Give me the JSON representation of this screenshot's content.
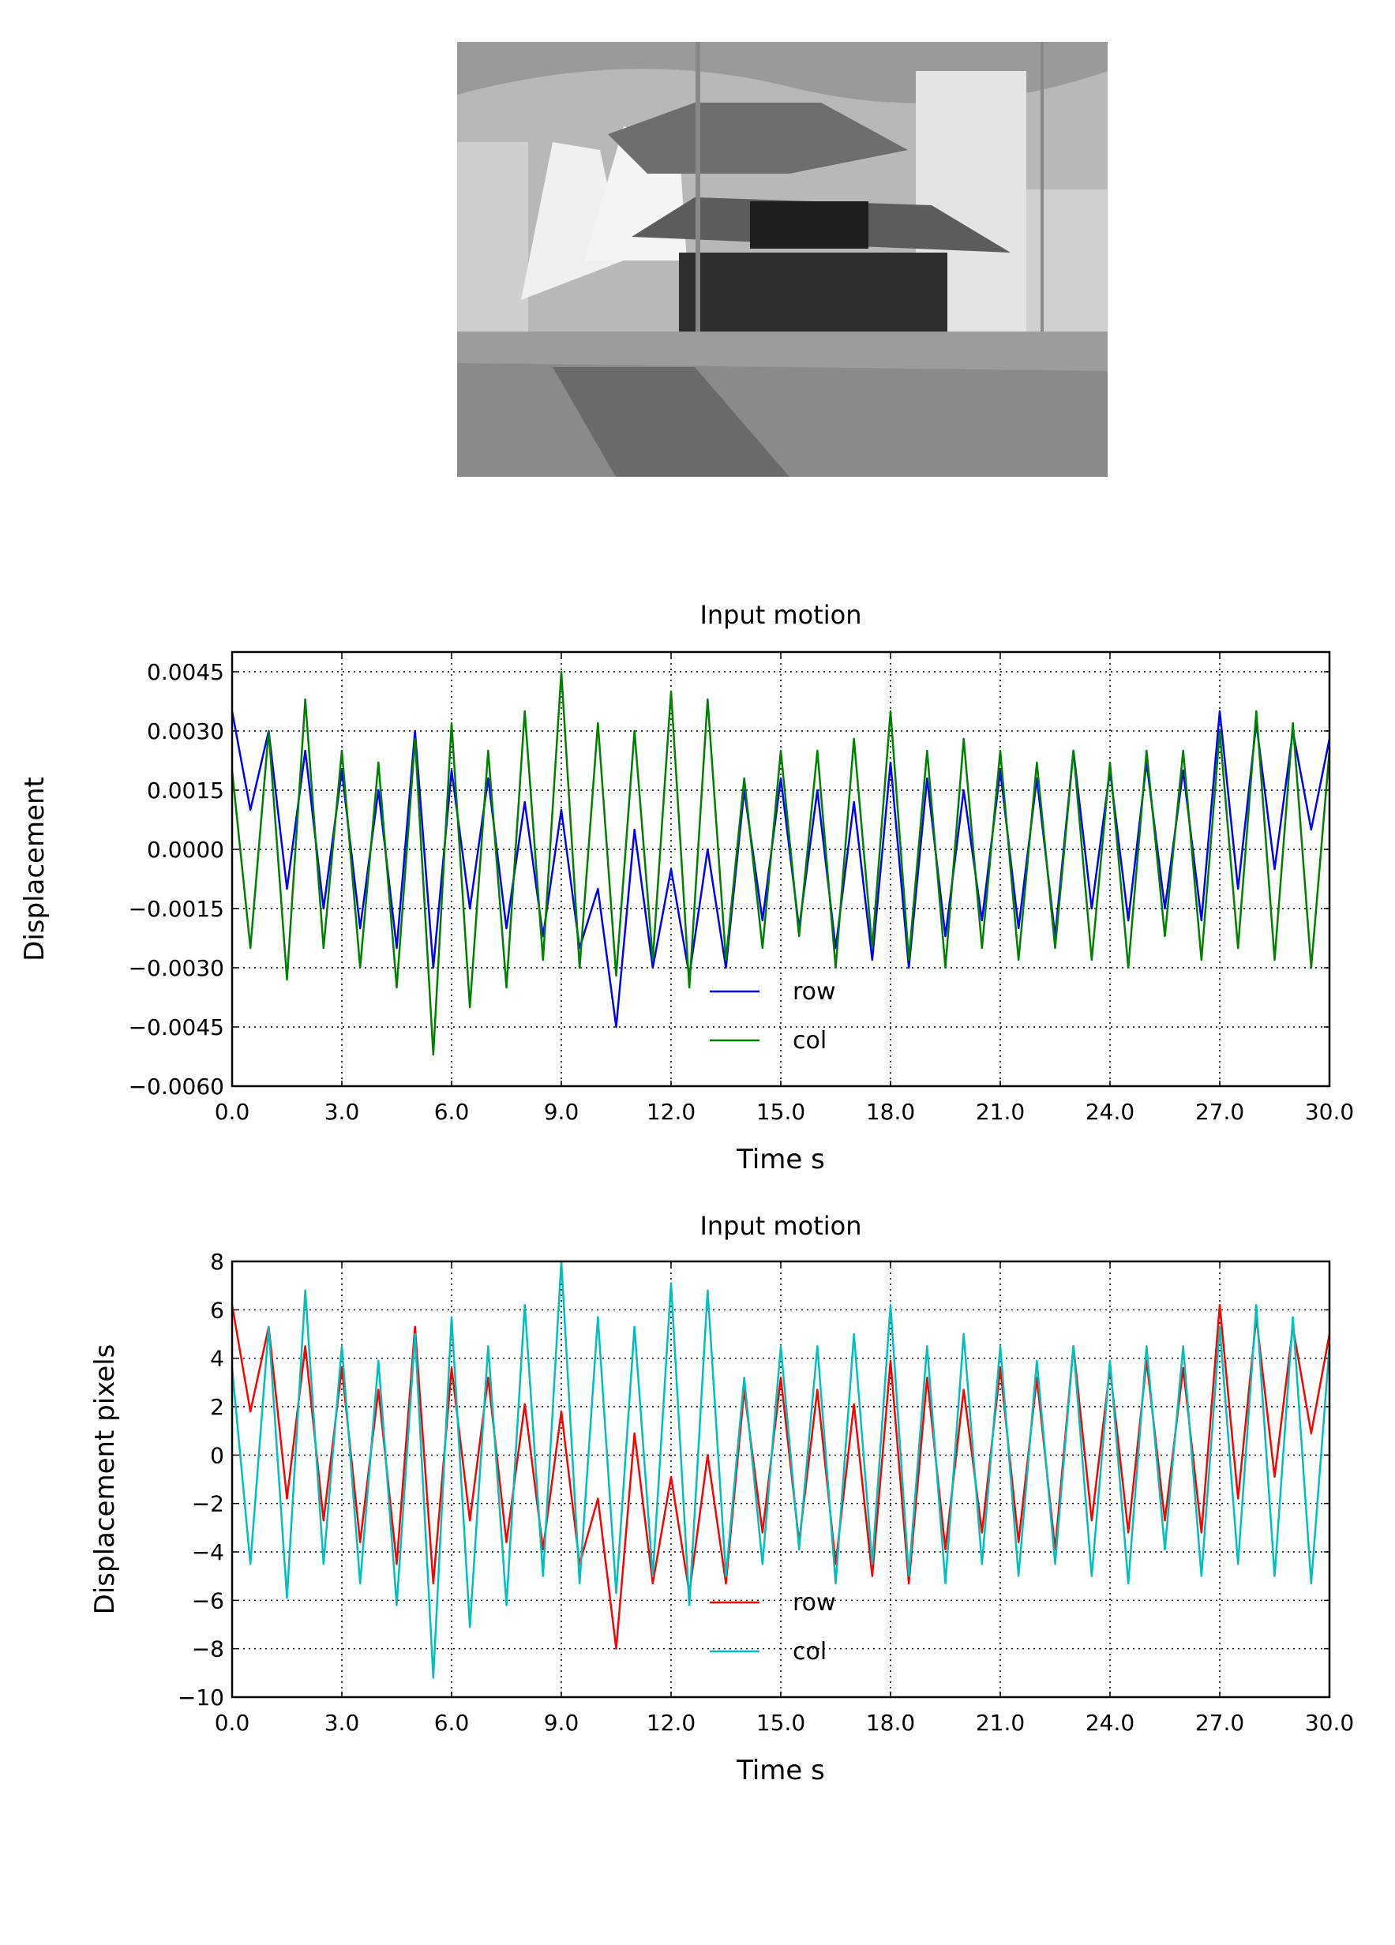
{
  "chart_data": [
    {
      "type": "line",
      "title": "Input motion",
      "xlabel": "Time s",
      "ylabel": "Displacement",
      "x": [
        0,
        0.5,
        1,
        1.5,
        2,
        2.5,
        3,
        3.5,
        4,
        4.5,
        5,
        5.5,
        6,
        6.5,
        7,
        7.5,
        8,
        8.5,
        9,
        9.5,
        10,
        10.5,
        11,
        11.5,
        12,
        12.5,
        13,
        13.5,
        14,
        14.5,
        15,
        15.5,
        16,
        16.5,
        17,
        17.5,
        18,
        18.5,
        19,
        19.5,
        20,
        20.5,
        21,
        21.5,
        22,
        22.5,
        23,
        23.5,
        24,
        24.5,
        25,
        25.5,
        26,
        26.5,
        27,
        27.5,
        28,
        28.5,
        29,
        29.5,
        30
      ],
      "series": [
        {
          "name": "row",
          "color": "#0000ff",
          "values": [
            0.0035,
            0.001,
            0.003,
            -0.001,
            0.0025,
            -0.0015,
            0.002,
            -0.002,
            0.0015,
            -0.0025,
            0.003,
            -0.003,
            0.002,
            -0.0015,
            0.0018,
            -0.002,
            0.0012,
            -0.0022,
            0.001,
            -0.0025,
            -0.001,
            -0.0045,
            0.0005,
            -0.003,
            -0.0005,
            -0.0032,
            0.0,
            -0.003,
            0.0015,
            -0.0018,
            0.0018,
            -0.002,
            0.0015,
            -0.0025,
            0.0012,
            -0.0028,
            0.0022,
            -0.003,
            0.0018,
            -0.0022,
            0.0015,
            -0.0018,
            0.002,
            -0.002,
            0.0018,
            -0.0022,
            0.0025,
            -0.0015,
            0.002,
            -0.0018,
            0.0022,
            -0.0015,
            0.002,
            -0.0018,
            0.0035,
            -0.001,
            0.0032,
            -0.0005,
            0.003,
            0.0005,
            0.0028
          ]
        },
        {
          "name": "col",
          "color": "#008000",
          "values": [
            0.002,
            -0.0025,
            0.003,
            -0.0033,
            0.0038,
            -0.0025,
            0.0025,
            -0.003,
            0.0022,
            -0.0035,
            0.0028,
            -0.0052,
            0.0032,
            -0.004,
            0.0025,
            -0.0035,
            0.0035,
            -0.0028,
            0.0045,
            -0.003,
            0.0032,
            -0.0032,
            0.003,
            -0.0028,
            0.004,
            -0.0035,
            0.0038,
            -0.0028,
            0.0018,
            -0.0025,
            0.0025,
            -0.0022,
            0.0025,
            -0.003,
            0.0028,
            -0.0025,
            0.0035,
            -0.0028,
            0.0025,
            -0.003,
            0.0028,
            -0.0025,
            0.0025,
            -0.0028,
            0.0022,
            -0.0025,
            0.0025,
            -0.0028,
            0.0022,
            -0.003,
            0.0025,
            -0.0022,
            0.0025,
            -0.0028,
            0.003,
            -0.0025,
            0.0035,
            -0.0028,
            0.0032,
            -0.003,
            0.0025
          ]
        }
      ],
      "xlim": [
        0,
        30
      ],
      "xticks": [
        {
          "value": 0,
          "label": "0.0"
        },
        {
          "value": 3,
          "label": "3.0"
        },
        {
          "value": 6,
          "label": "6.0"
        },
        {
          "value": 9,
          "label": "9.0"
        },
        {
          "value": 12,
          "label": "12.0"
        },
        {
          "value": 15,
          "label": "15.0"
        },
        {
          "value": 18,
          "label": "18.0"
        },
        {
          "value": 21,
          "label": "21.0"
        },
        {
          "value": 24,
          "label": "24.0"
        },
        {
          "value": 27,
          "label": "27.0"
        },
        {
          "value": 30,
          "label": "30.0"
        }
      ],
      "ylim": [
        -0.006,
        0.005
      ],
      "yticks": [
        {
          "value": -0.006,
          "label": "−0.0060"
        },
        {
          "value": -0.0045,
          "label": "−0.0045"
        },
        {
          "value": -0.003,
          "label": "−0.0030"
        },
        {
          "value": -0.0015,
          "label": "−0.0015"
        },
        {
          "value": 0,
          "label": "0.0000"
        },
        {
          "value": 0.0015,
          "label": "0.0015"
        },
        {
          "value": 0.003,
          "label": "0.0030"
        },
        {
          "value": 0.0045,
          "label": "0.0045"
        }
      ],
      "grid": true,
      "legend": "lower center"
    },
    {
      "type": "line",
      "title": "Input motion",
      "xlabel": "Time s",
      "ylabel": "Displacement pixels",
      "x": [
        0,
        0.5,
        1,
        1.5,
        2,
        2.5,
        3,
        3.5,
        4,
        4.5,
        5,
        5.5,
        6,
        6.5,
        7,
        7.5,
        8,
        8.5,
        9,
        9.5,
        10,
        10.5,
        11,
        11.5,
        12,
        12.5,
        13,
        13.5,
        14,
        14.5,
        15,
        15.5,
        16,
        16.5,
        17,
        17.5,
        18,
        18.5,
        19,
        19.5,
        20,
        20.5,
        21,
        21.5,
        22,
        22.5,
        23,
        23.5,
        24,
        24.5,
        25,
        25.5,
        26,
        26.5,
        27,
        27.5,
        28,
        28.5,
        29,
        29.5,
        30
      ],
      "series": [
        {
          "name": "row",
          "color": "#ff0000",
          "values": [
            6.2,
            1.8,
            5.3,
            -1.8,
            4.5,
            -2.7,
            3.6,
            -3.6,
            2.7,
            -4.5,
            5.3,
            -5.3,
            3.6,
            -2.7,
            3.2,
            -3.6,
            2.1,
            -3.9,
            1.8,
            -4.5,
            -1.8,
            -8.0,
            0.9,
            -5.3,
            -0.9,
            -5.7,
            0,
            -5.3,
            2.7,
            -3.2,
            3.2,
            -3.6,
            2.7,
            -4.5,
            2.1,
            -5.0,
            3.9,
            -5.3,
            3.2,
            -3.9,
            2.7,
            -3.2,
            3.6,
            -3.6,
            3.2,
            -3.9,
            4.5,
            -2.7,
            3.6,
            -3.2,
            3.9,
            -2.7,
            3.6,
            -3.2,
            6.2,
            -1.8,
            5.7,
            -0.9,
            5.3,
            0.9,
            5.0
          ]
        },
        {
          "name": "col",
          "color": "#00bfbf",
          "values": [
            3.6,
            -4.5,
            5.3,
            -5.9,
            6.8,
            -4.5,
            4.5,
            -5.3,
            3.9,
            -6.2,
            5.0,
            -9.2,
            5.7,
            -7.1,
            4.5,
            -6.2,
            6.2,
            -5.0,
            8.0,
            -5.3,
            5.7,
            -5.7,
            5.3,
            -5.0,
            7.1,
            -6.2,
            6.8,
            -5.0,
            3.2,
            -4.5,
            4.5,
            -3.9,
            4.5,
            -5.3,
            5.0,
            -4.5,
            6.2,
            -5.0,
            4.5,
            -5.3,
            5.0,
            -4.5,
            4.5,
            -5.0,
            3.9,
            -4.5,
            4.5,
            -5.0,
            3.9,
            -5.3,
            4.5,
            -3.9,
            4.5,
            -5.0,
            5.3,
            -4.5,
            6.2,
            -5.0,
            5.7,
            -5.3,
            4.5
          ]
        }
      ],
      "xlim": [
        0,
        30
      ],
      "xticks": [
        {
          "value": 0,
          "label": "0.0"
        },
        {
          "value": 3,
          "label": "3.0"
        },
        {
          "value": 6,
          "label": "6.0"
        },
        {
          "value": 9,
          "label": "9.0"
        },
        {
          "value": 12,
          "label": "12.0"
        },
        {
          "value": 15,
          "label": "15.0"
        },
        {
          "value": 18,
          "label": "18.0"
        },
        {
          "value": 21,
          "label": "21.0"
        },
        {
          "value": 24,
          "label": "24.0"
        },
        {
          "value": 27,
          "label": "27.0"
        },
        {
          "value": 30,
          "label": "30.0"
        }
      ],
      "ylim": [
        -10,
        8
      ],
      "yticks": [
        {
          "value": -10,
          "label": "−10"
        },
        {
          "value": -8,
          "label": "−8"
        },
        {
          "value": -6,
          "label": "−6"
        },
        {
          "value": -4,
          "label": "−4"
        },
        {
          "value": -2,
          "label": "−2"
        },
        0,
        2,
        4,
        6,
        8
      ],
      "grid": true,
      "legend": "lower center"
    }
  ]
}
